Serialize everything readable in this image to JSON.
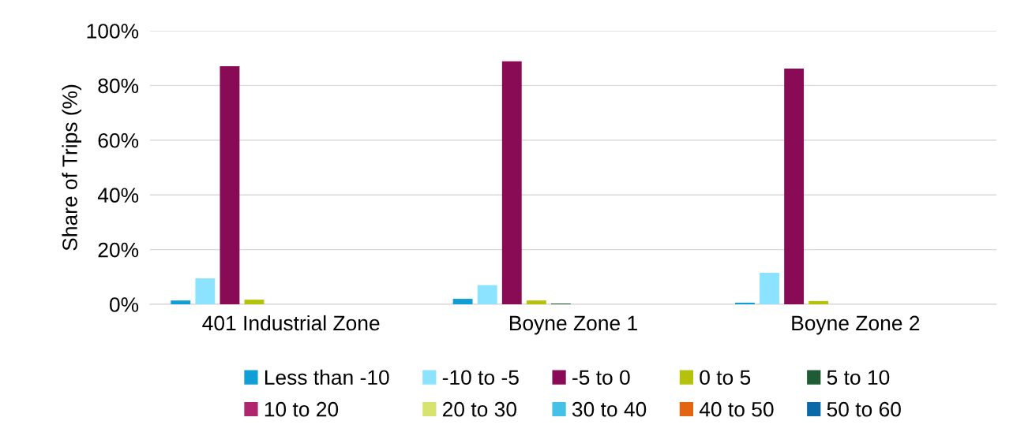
{
  "chart_data": {
    "type": "bar",
    "ylabel": "Share of Trips (%)",
    "categories": [
      "401 Industrial Zone",
      "Boyne Zone 1",
      "Boyne Zone 2"
    ],
    "ylim": [
      0,
      100
    ],
    "yticks": [
      {
        "value": 0,
        "label": "0%"
      },
      {
        "value": 20,
        "label": "20%"
      },
      {
        "value": 40,
        "label": "40%"
      },
      {
        "value": 60,
        "label": "60%"
      },
      {
        "value": 80,
        "label": "80%"
      },
      {
        "value": 100,
        "label": "100%"
      }
    ],
    "grid": "y",
    "legend": "bottom",
    "series": [
      {
        "name": "Less than -10",
        "color": "#0f9ed5",
        "values": [
          1.4,
          2.0,
          0.6
        ]
      },
      {
        "name": "-10 to -5",
        "color": "#8ce3ff",
        "values": [
          9.5,
          7.0,
          11.5
        ]
      },
      {
        "name": "-5 to 0",
        "color": "#8a0b55",
        "values": [
          87,
          88.8,
          86.2
        ]
      },
      {
        "name": "0 to 5",
        "color": "#b5c20c",
        "values": [
          1.7,
          1.4,
          1.2
        ]
      },
      {
        "name": "5 to 10",
        "color": "#1f5c36",
        "values": [
          0,
          0.3,
          0
        ]
      },
      {
        "name": "10 to 20",
        "color": "#b0256e",
        "values": [
          0,
          0,
          0
        ]
      },
      {
        "name": "20 to 30",
        "color": "#d6e46e",
        "values": [
          0,
          0,
          0
        ]
      },
      {
        "name": "30 to 40",
        "color": "#45c0e6",
        "values": [
          0,
          0,
          0
        ]
      },
      {
        "name": "40 to 50",
        "color": "#e36513",
        "values": [
          0,
          0,
          0
        ]
      },
      {
        "name": "50 to 60",
        "color": "#0a6aa8",
        "values": [
          0,
          0,
          0
        ]
      }
    ]
  }
}
